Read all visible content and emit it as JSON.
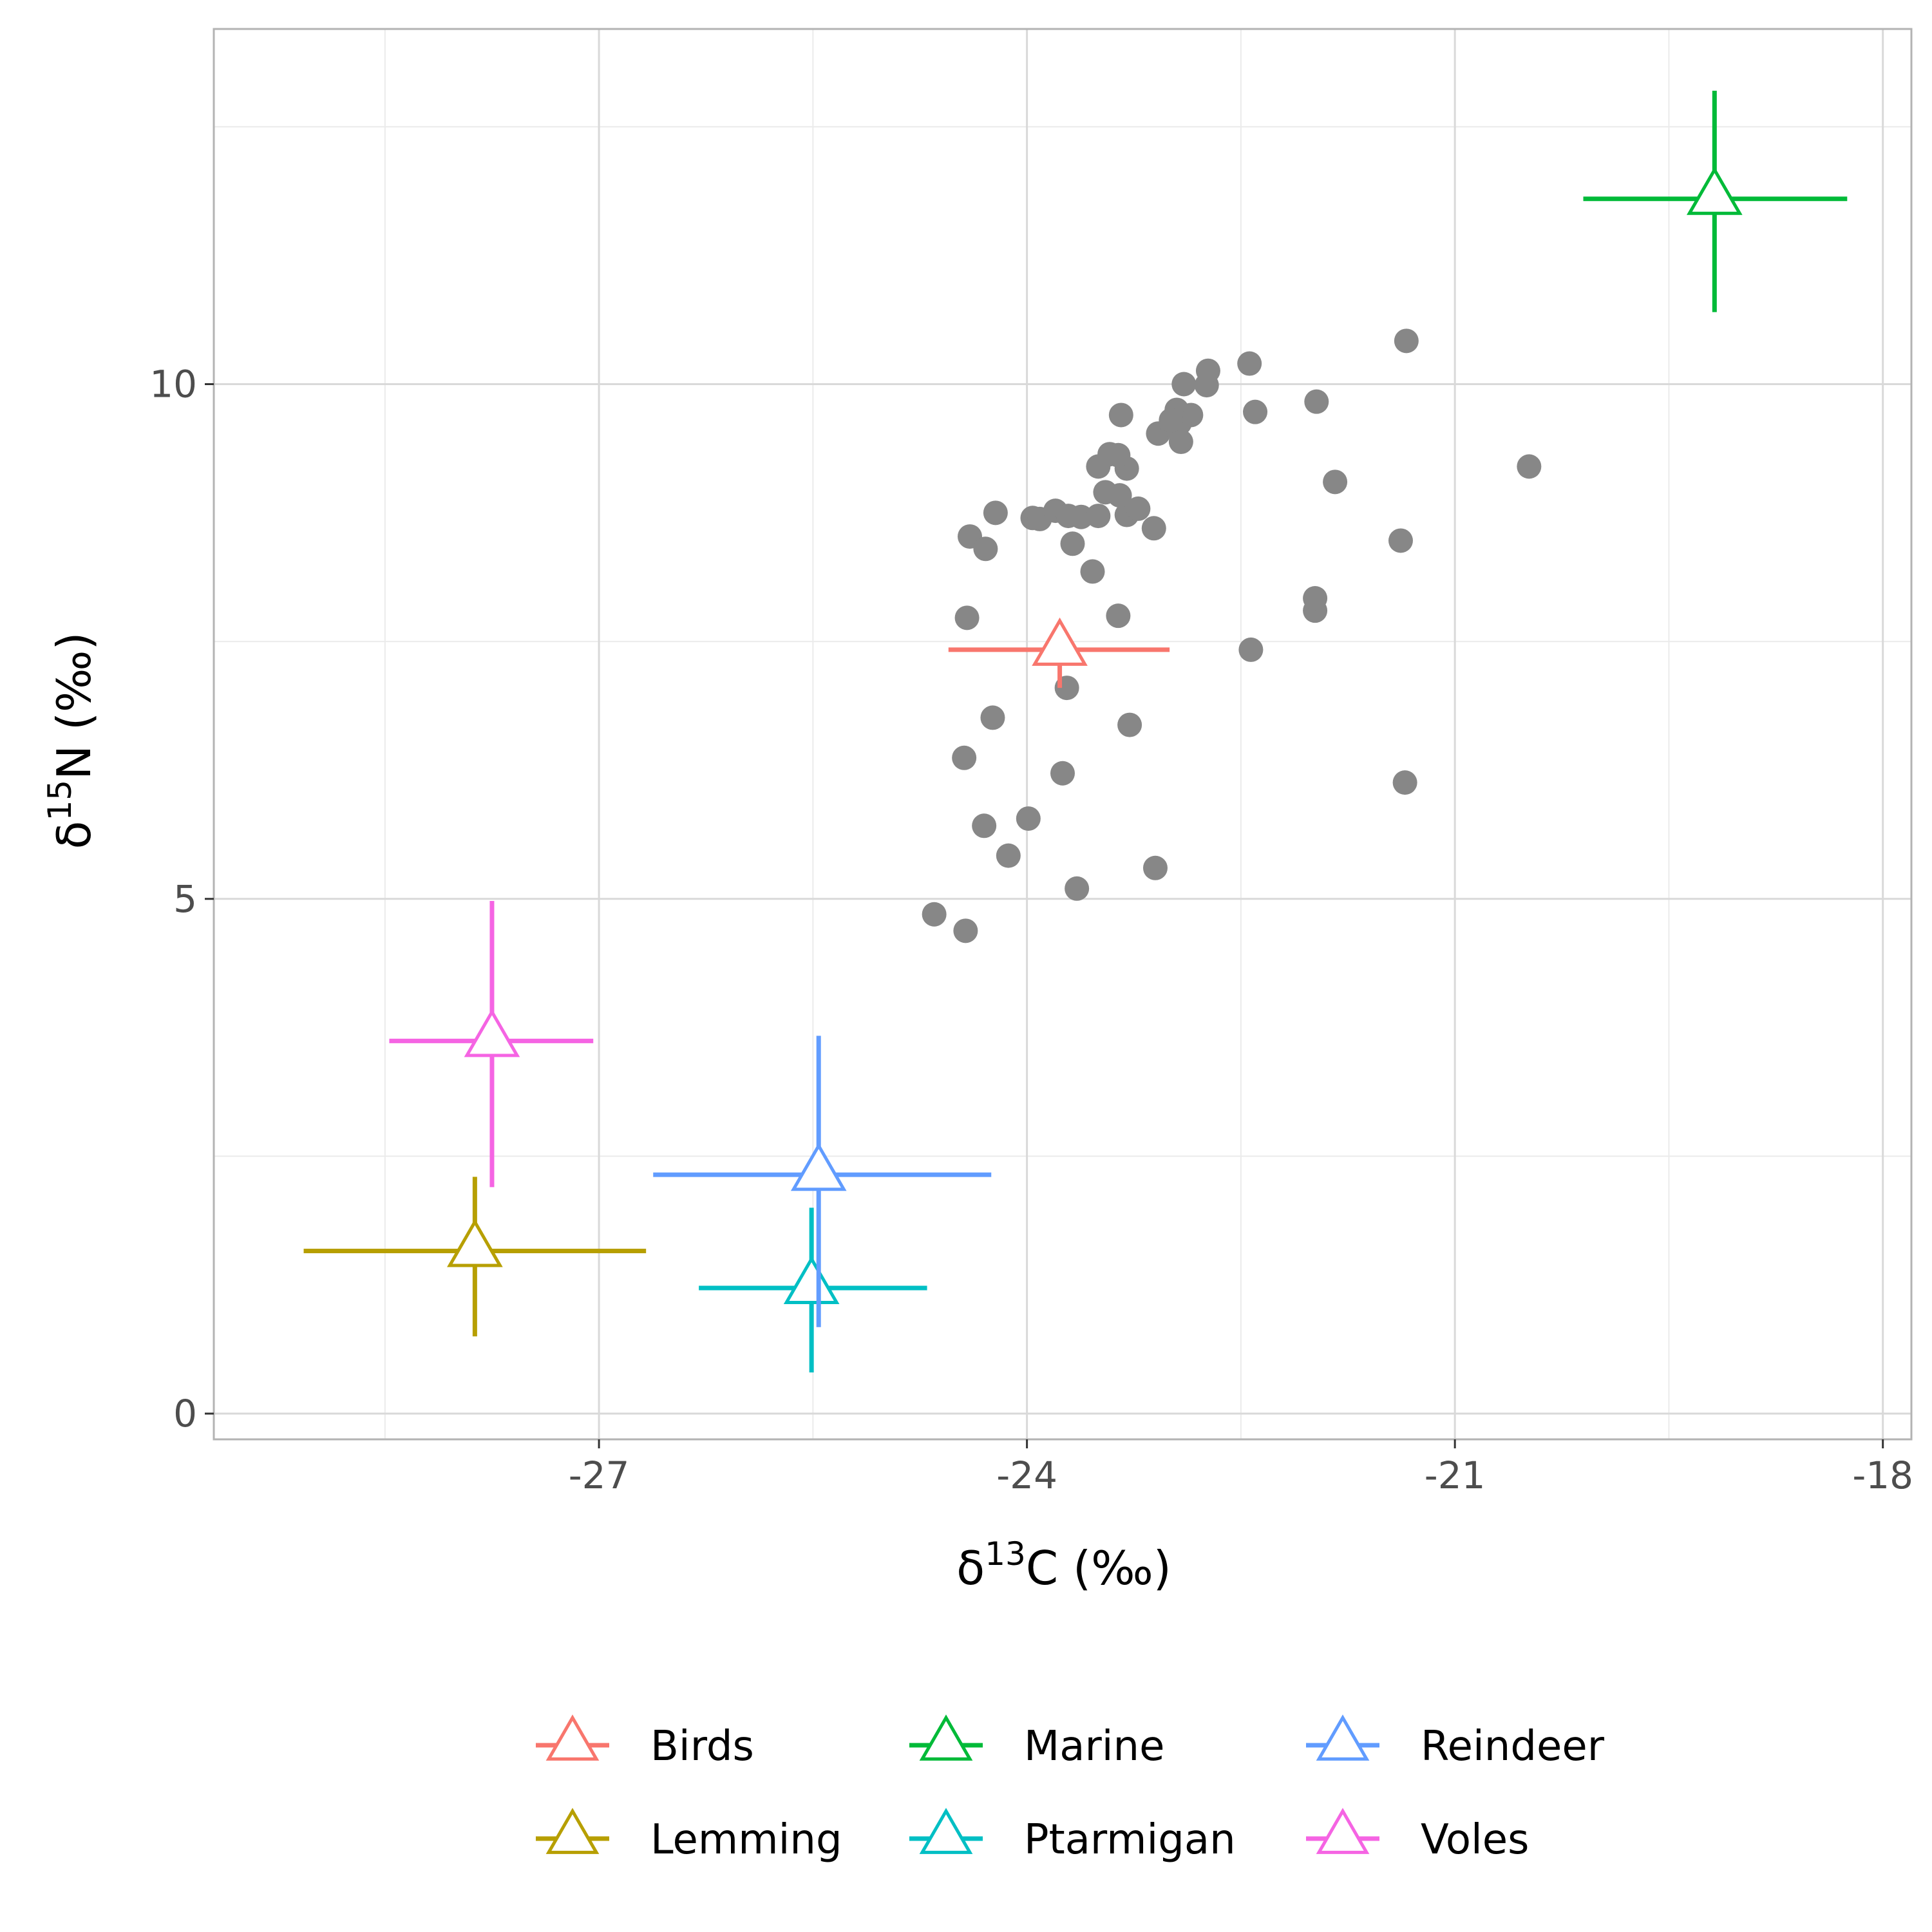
{
  "chart_data": {
    "type": "scatter",
    "xlabel": {
      "prefix": "δ",
      "sup": "13",
      "suffix": "C (‰)"
    },
    "ylabel": {
      "prefix": "δ",
      "sup": "15",
      "suffix": "N (‰)"
    },
    "xlim": [
      -29.7,
      -17.8
    ],
    "ylim": [
      -0.25,
      13.45
    ],
    "x_ticks": [
      -27,
      -24,
      -21,
      -18
    ],
    "x_tick_labels": [
      "-27",
      "-24",
      "-21",
      "-18"
    ],
    "y_ticks": [
      0,
      5,
      10
    ],
    "y_tick_labels": [
      "0",
      "5",
      "10"
    ],
    "x_minor_ticks": [
      -28.5,
      -25.5,
      -22.5,
      -19.5
    ],
    "y_minor_ticks": [
      2.5,
      7.5,
      12.5
    ],
    "grid": true,
    "legend_position": "bottom",
    "samples": {
      "color": "#878787",
      "points": [
        [
          -24.65,
          4.85
        ],
        [
          -24.43,
          4.69
        ],
        [
          -23.65,
          5.1
        ],
        [
          -23.1,
          5.3
        ],
        [
          -24.13,
          5.42
        ],
        [
          -24.3,
          5.71
        ],
        [
          -23.99,
          5.78
        ],
        [
          -21.35,
          6.13
        ],
        [
          -23.75,
          6.22
        ],
        [
          -24.44,
          6.37
        ],
        [
          -24.24,
          6.76
        ],
        [
          -23.28,
          6.69
        ],
        [
          -23.72,
          7.05
        ],
        [
          -22.43,
          7.42
        ],
        [
          -24.42,
          7.73
        ],
        [
          -23.36,
          7.75
        ],
        [
          -21.98,
          7.8
        ],
        [
          -21.98,
          7.92
        ],
        [
          -23.54,
          8.18
        ],
        [
          -24.4,
          8.52
        ],
        [
          -24.29,
          8.4
        ],
        [
          -23.68,
          8.45
        ],
        [
          -21.38,
          8.48
        ],
        [
          -23.11,
          8.6
        ],
        [
          -24.22,
          8.75
        ],
        [
          -23.96,
          8.7
        ],
        [
          -23.91,
          8.69
        ],
        [
          -23.8,
          8.77
        ],
        [
          -23.71,
          8.72
        ],
        [
          -23.62,
          8.71
        ],
        [
          -23.5,
          8.72
        ],
        [
          -23.3,
          8.73
        ],
        [
          -23.22,
          8.79
        ],
        [
          -23.45,
          8.95
        ],
        [
          -23.35,
          8.92
        ],
        [
          -21.84,
          9.05
        ],
        [
          -23.5,
          9.2
        ],
        [
          -23.3,
          9.18
        ],
        [
          -23.42,
          9.32
        ],
        [
          -23.36,
          9.31
        ],
        [
          -20.48,
          9.2
        ],
        [
          -23.08,
          9.52
        ],
        [
          -22.98,
          9.6
        ],
        [
          -22.95,
          9.75
        ],
        [
          -22.85,
          9.7
        ],
        [
          -22.93,
          9.62
        ],
        [
          -22.92,
          9.44
        ],
        [
          -22.99,
          9.65
        ],
        [
          -23.34,
          9.7
        ],
        [
          -22.4,
          9.73
        ],
        [
          -21.97,
          9.83
        ],
        [
          -22.9,
          10.0
        ],
        [
          -22.74,
          9.99
        ],
        [
          -22.73,
          10.13
        ],
        [
          -22.44,
          10.2
        ],
        [
          -21.34,
          10.42
        ]
      ]
    },
    "series": [
      {
        "name": "Birds",
        "color": "#F8766D",
        "x": -23.77,
        "y": 7.42,
        "x_range": [
          -24.55,
          -23.0
        ],
        "y_range": [
          7.05,
          7.42
        ]
      },
      {
        "name": "Lemming",
        "color": "#B79F00",
        "x": -27.87,
        "y": 1.58,
        "x_range": [
          -29.07,
          -26.67
        ],
        "y_range": [
          0.75,
          2.3
        ]
      },
      {
        "name": "Marine",
        "color": "#00BA38",
        "x": -19.18,
        "y": 11.8,
        "x_range": [
          -20.1,
          -18.25
        ],
        "y_range": [
          10.7,
          12.85
        ]
      },
      {
        "name": "Ptarmigan",
        "color": "#00BFC4",
        "x": -25.51,
        "y": 1.22,
        "x_range": [
          -26.3,
          -24.7
        ],
        "y_range": [
          0.4,
          2.0
        ]
      },
      {
        "name": "Reindeer",
        "color": "#619CFF",
        "x": -25.46,
        "y": 2.32,
        "x_range": [
          -26.62,
          -24.25
        ],
        "y_range": [
          0.84,
          3.67
        ]
      },
      {
        "name": "Voles",
        "color": "#F564E3",
        "x": -27.75,
        "y": 3.62,
        "x_range": [
          -28.47,
          -27.04
        ],
        "y_range": [
          2.2,
          4.98
        ]
      }
    ]
  }
}
